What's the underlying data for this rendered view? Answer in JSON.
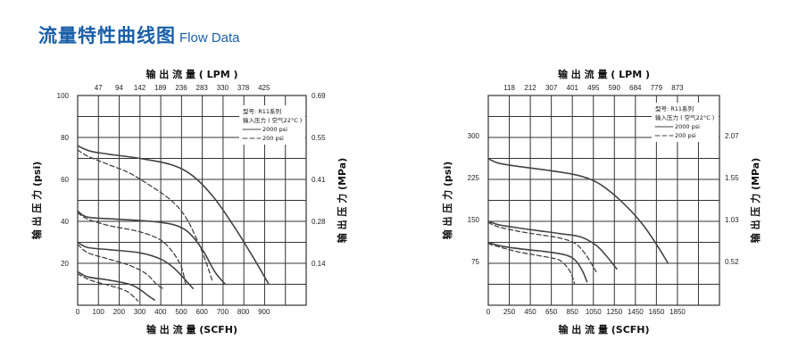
{
  "header": {
    "title_cn": "流量特性曲线图",
    "title_en": "Flow Data"
  },
  "chart_data": [
    {
      "type": "line",
      "top_axis": {
        "label": "输 出 流 量 ( LPM )",
        "ticks": [
          "47",
          "94",
          "142",
          "189",
          "236",
          "283",
          "330",
          "378",
          "425"
        ]
      },
      "bottom_axis": {
        "label": "输 出 流 量 (SCFH)",
        "ticks": [
          "0",
          "100",
          "200",
          "300",
          "400",
          "500",
          "600",
          "700",
          "800",
          "900"
        ]
      },
      "left_axis": {
        "label": "输 出 压 力 (psi)",
        "ticks": [
          "100",
          "80",
          "60",
          "40",
          "20"
        ]
      },
      "right_axis": {
        "label": "输 出 压 力 (MPa)",
        "ticks": [
          "0.69",
          "0.55",
          "0.41",
          "0.28",
          "0.14"
        ]
      },
      "xlim": [
        0,
        1100
      ],
      "ylim": [
        0,
        100
      ],
      "grid": true,
      "legend": {
        "placement": "top-right",
        "model": "型号: R11系列",
        "input": "输入压力 ( 空气22°C )",
        "entries": [
          {
            "label": "2000 psi",
            "style": "solid"
          },
          {
            "label": "200 psi",
            "style": "dashed"
          }
        ]
      },
      "series": [
        {
          "style": "solid",
          "points": [
            [
              0,
              76
            ],
            [
              60,
              73.5
            ],
            [
              150,
              72
            ],
            [
              300,
              70
            ],
            [
              450,
              67
            ],
            [
              550,
              62
            ],
            [
              650,
              52
            ],
            [
              750,
              38
            ],
            [
              850,
              22
            ],
            [
              920,
              10
            ]
          ]
        },
        {
          "style": "dashed",
          "points": [
            [
              0,
              74
            ],
            [
              50,
              71
            ],
            [
              150,
              67
            ],
            [
              250,
              63
            ],
            [
              350,
              57
            ],
            [
              450,
              50
            ],
            [
              520,
              42
            ],
            [
              580,
              30
            ],
            [
              620,
              20
            ],
            [
              650,
              11
            ]
          ]
        },
        {
          "style": "solid",
          "points": [
            [
              0,
              45
            ],
            [
              50,
              42
            ],
            [
              200,
              41
            ],
            [
              400,
              39.5
            ],
            [
              500,
              37
            ],
            [
              560,
              32
            ],
            [
              610,
              25
            ],
            [
              660,
              16
            ],
            [
              710,
              10
            ]
          ]
        },
        {
          "style": "dashed",
          "points": [
            [
              0,
              44
            ],
            [
              50,
              41
            ],
            [
              150,
              38
            ],
            [
              300,
              35
            ],
            [
              400,
              31
            ],
            [
              460,
              25
            ],
            [
              500,
              18
            ],
            [
              520,
              10
            ]
          ]
        },
        {
          "style": "solid",
          "points": [
            [
              0,
              30
            ],
            [
              50,
              27.5
            ],
            [
              150,
              26.5
            ],
            [
              300,
              25
            ],
            [
              400,
              22
            ],
            [
              460,
              18
            ],
            [
              510,
              13
            ],
            [
              555,
              8
            ]
          ]
        },
        {
          "style": "dashed",
          "points": [
            [
              0,
              29
            ],
            [
              50,
              25
            ],
            [
              150,
              22
            ],
            [
              250,
              19
            ],
            [
              330,
              15
            ],
            [
              380,
              10
            ],
            [
              410,
              8
            ]
          ]
        },
        {
          "style": "solid",
          "points": [
            [
              0,
              16
            ],
            [
              50,
              13.5
            ],
            [
              150,
              12
            ],
            [
              250,
              10
            ],
            [
              300,
              7.5
            ],
            [
              340,
              4.5
            ],
            [
              370,
              2.5
            ]
          ]
        },
        {
          "style": "dashed",
          "points": [
            [
              0,
              15
            ],
            [
              60,
              12
            ],
            [
              150,
              9.5
            ],
            [
              230,
              7
            ],
            [
              270,
              4
            ],
            [
              290,
              2
            ]
          ]
        }
      ]
    },
    {
      "type": "line",
      "top_axis": {
        "label": "输 出 流 量 ( LPM )",
        "ticks": [
          "118",
          "212",
          "307",
          "401",
          "495",
          "590",
          "684",
          "779",
          "873"
        ]
      },
      "bottom_axis": {
        "label": "输 出 流 量 (SCFH)",
        "ticks": [
          "0",
          "250",
          "450",
          "650",
          "850",
          "1050",
          "1250",
          "1450",
          "1650",
          "1850"
        ]
      },
      "left_axis": {
        "label": "输 出 压 力 (psi)",
        "ticks": [
          "300",
          "225",
          "150",
          "75"
        ]
      },
      "right_axis": {
        "label": "输 出 压 力 (MPa)",
        "ticks": [
          "2.07",
          "1.55",
          "1.03",
          "0.52"
        ]
      },
      "xlim": [
        0,
        2250
      ],
      "ylim": [
        0,
        375
      ],
      "grid": true,
      "legend": {
        "placement": "top-right",
        "model": "型号: R11系列",
        "input": "输入压力 ( 空气22°C )",
        "entries": [
          {
            "label": "2000 psi",
            "style": "solid"
          },
          {
            "label": "200 psi",
            "style": "dashed"
          }
        ]
      },
      "series": [
        {
          "style": "solid",
          "points": [
            [
              0,
              262
            ],
            [
              100,
              254
            ],
            [
              300,
              248
            ],
            [
              550,
              242
            ],
            [
              800,
              235
            ],
            [
              950,
              228
            ],
            [
              1100,
              215
            ],
            [
              1300,
              185
            ],
            [
              1500,
              145
            ],
            [
              1650,
              105
            ],
            [
              1750,
              75
            ]
          ]
        },
        {
          "style": "solid",
          "points": [
            [
              0,
              150
            ],
            [
              100,
              144
            ],
            [
              300,
              138
            ],
            [
              500,
              133
            ],
            [
              700,
              128
            ],
            [
              900,
              122
            ],
            [
              1050,
              107
            ],
            [
              1150,
              88
            ],
            [
              1250,
              65
            ]
          ]
        },
        {
          "style": "dashed",
          "points": [
            [
              0,
              148
            ],
            [
              100,
              140
            ],
            [
              300,
              132
            ],
            [
              500,
              126
            ],
            [
              700,
              120
            ],
            [
              850,
              110
            ],
            [
              950,
              90
            ],
            [
              1050,
              60
            ]
          ]
        },
        {
          "style": "solid",
          "points": [
            [
              0,
              112
            ],
            [
              150,
              105
            ],
            [
              350,
              100
            ],
            [
              550,
              96
            ],
            [
              750,
              90
            ],
            [
              850,
              80
            ],
            [
              920,
              60
            ],
            [
              960,
              42
            ]
          ]
        },
        {
          "style": "dashed",
          "points": [
            [
              0,
              110
            ],
            [
              150,
              102
            ],
            [
              300,
              95
            ],
            [
              450,
              90
            ],
            [
              600,
              85
            ],
            [
              700,
              80
            ],
            [
              780,
              65
            ],
            [
              820,
              50
            ],
            [
              840,
              38
            ]
          ]
        }
      ]
    }
  ]
}
